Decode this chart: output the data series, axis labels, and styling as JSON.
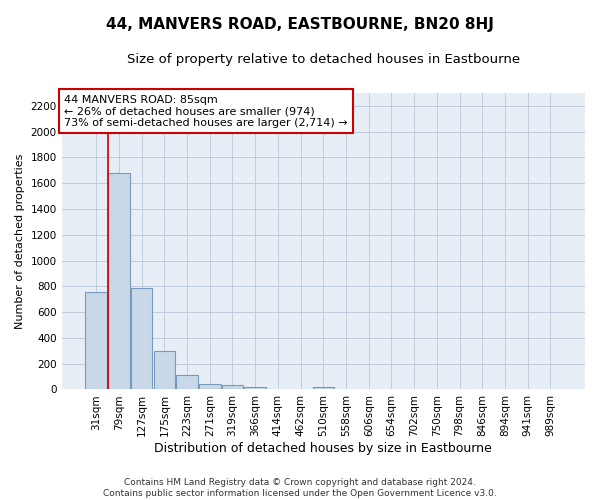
{
  "title": "44, MANVERS ROAD, EASTBOURNE, BN20 8HJ",
  "subtitle": "Size of property relative to detached houses in Eastbourne",
  "xlabel": "Distribution of detached houses by size in Eastbourne",
  "ylabel": "Number of detached properties",
  "footer_line1": "Contains HM Land Registry data © Crown copyright and database right 2024.",
  "footer_line2": "Contains public sector information licensed under the Open Government Licence v3.0.",
  "bar_labels": [
    "31sqm",
    "79sqm",
    "127sqm",
    "175sqm",
    "223sqm",
    "271sqm",
    "319sqm",
    "366sqm",
    "414sqm",
    "462sqm",
    "510sqm",
    "558sqm",
    "606sqm",
    "654sqm",
    "702sqm",
    "750sqm",
    "798sqm",
    "846sqm",
    "894sqm",
    "941sqm",
    "989sqm"
  ],
  "bar_values": [
    760,
    1680,
    790,
    300,
    110,
    45,
    32,
    22,
    0,
    0,
    20,
    0,
    0,
    0,
    0,
    0,
    0,
    0,
    0,
    0,
    0
  ],
  "bar_color": "#c8d8e8",
  "bar_edge_color": "#7799bb",
  "grid_color": "#c0ccdd",
  "background_color": "#e8eef5",
  "vline_x": 0.53,
  "vline_color": "#cc0000",
  "annotation_line1": "44 MANVERS ROAD: 85sqm",
  "annotation_line2": "← 26% of detached houses are smaller (974)",
  "annotation_line3": "73% of semi-detached houses are larger (2,714) →",
  "annotation_box_color": "#cc0000",
  "ylim": [
    0,
    2300
  ],
  "yticks": [
    0,
    200,
    400,
    600,
    800,
    1000,
    1200,
    1400,
    1600,
    1800,
    2000,
    2200
  ],
  "title_fontsize": 11,
  "subtitle_fontsize": 9.5,
  "xlabel_fontsize": 9,
  "ylabel_fontsize": 8,
  "tick_fontsize": 7.5,
  "annotation_fontsize": 8,
  "footer_fontsize": 6.5
}
